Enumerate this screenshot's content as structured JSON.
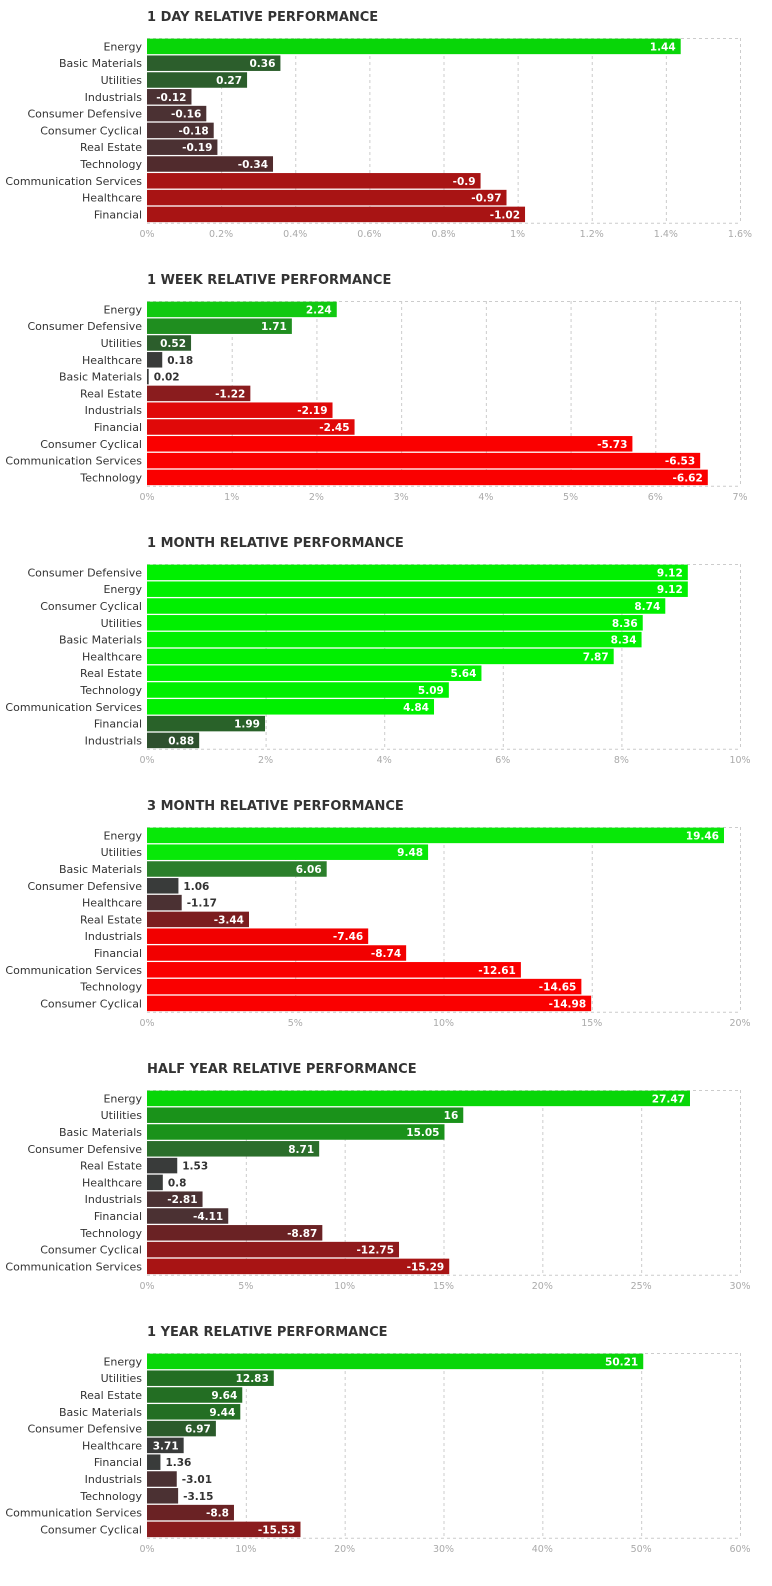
{
  "chart_data": [
    {
      "type": "bar",
      "orientation": "horizontal",
      "title": "1 DAY RELATIVE PERFORMANCE",
      "categories": [
        "Energy",
        "Basic Materials",
        "Utilities",
        "Industrials",
        "Consumer Defensive",
        "Consumer Cyclical",
        "Real Estate",
        "Technology",
        "Communication Services",
        "Healthcare",
        "Financial"
      ],
      "values": [
        1.44,
        0.36,
        0.27,
        -0.12,
        -0.16,
        -0.18,
        -0.19,
        -0.34,
        -0.9,
        -0.97,
        -1.02
      ],
      "value_labels": [
        "1.44",
        "0.36",
        "0.27",
        "-0.12",
        "-0.16",
        "-0.18",
        "-0.19",
        "-0.34",
        "-0.9",
        "-0.97",
        "-1.02"
      ],
      "xlim": [
        0,
        1.6
      ],
      "ticks": [
        "0%",
        "0.2%",
        "0.4%",
        "0.6%",
        "0.8%",
        "1%",
        "1.2%",
        "1.4%",
        "1.6%"
      ],
      "bar_colors": [
        "#08d608",
        "#2c5e2c",
        "#2c5e2c",
        "#4b3133",
        "#4b3133",
        "#4b3133",
        "#4b3133",
        "#512b2d",
        "#a81414",
        "#a81414",
        "#a81414"
      ],
      "grid": true
    },
    {
      "type": "bar",
      "orientation": "horizontal",
      "title": "1 WEEK RELATIVE PERFORMANCE",
      "categories": [
        "Energy",
        "Consumer Defensive",
        "Utilities",
        "Healthcare",
        "Basic Materials",
        "Real Estate",
        "Industrials",
        "Financial",
        "Consumer Cyclical",
        "Communication Services",
        "Technology"
      ],
      "values": [
        2.24,
        1.71,
        0.52,
        0.18,
        0.02,
        -1.22,
        -2.19,
        -2.45,
        -5.73,
        -6.53,
        -6.62
      ],
      "value_labels": [
        "2.24",
        "1.71",
        "0.52",
        "0.18",
        "0.02",
        "-1.22",
        "-2.19",
        "-2.45",
        "-5.73",
        "-6.53",
        "-6.62"
      ],
      "xlim": [
        0,
        7
      ],
      "ticks": [
        "0%",
        "1%",
        "2%",
        "3%",
        "4%",
        "5%",
        "6%",
        "7%"
      ],
      "bar_colors": [
        "#11c911",
        "#1f8e1f",
        "#2c5e2c",
        "#393b3a",
        "#393b3a",
        "#8a1c1e",
        "#e00909",
        "#e00909",
        "#fa0000",
        "#fa0000",
        "#fa0000"
      ],
      "grid": true
    },
    {
      "type": "bar",
      "orientation": "horizontal",
      "title": "1 MONTH RELATIVE PERFORMANCE",
      "categories": [
        "Consumer Defensive",
        "Energy",
        "Consumer Cyclical",
        "Utilities",
        "Basic Materials",
        "Healthcare",
        "Real Estate",
        "Technology",
        "Communication Services",
        "Financial",
        "Industrials"
      ],
      "values": [
        9.12,
        9.12,
        8.74,
        8.36,
        8.34,
        7.87,
        5.64,
        5.09,
        4.84,
        1.99,
        0.88
      ],
      "value_labels": [
        "9.12",
        "9.12",
        "8.74",
        "8.36",
        "8.34",
        "7.87",
        "5.64",
        "5.09",
        "4.84",
        "1.99",
        "0.88"
      ],
      "xlim": [
        0,
        10
      ],
      "ticks": [
        "0%",
        "2%",
        "4%",
        "6%",
        "8%",
        "10%"
      ],
      "bar_colors": [
        "#00f000",
        "#00f000",
        "#00f000",
        "#00f000",
        "#00f000",
        "#00f000",
        "#00f000",
        "#00f000",
        "#00f000",
        "#296229",
        "#2e502e"
      ],
      "grid": true
    },
    {
      "type": "bar",
      "orientation": "horizontal",
      "title": "3 MONTH RELATIVE PERFORMANCE",
      "categories": [
        "Energy",
        "Utilities",
        "Basic Materials",
        "Consumer Defensive",
        "Healthcare",
        "Real Estate",
        "Industrials",
        "Financial",
        "Communication Services",
        "Technology",
        "Consumer Cyclical"
      ],
      "values": [
        19.46,
        9.48,
        6.06,
        1.06,
        -1.17,
        -3.44,
        -7.46,
        -8.74,
        -12.61,
        -14.65,
        -14.98
      ],
      "value_labels": [
        "19.46",
        "9.48",
        "6.06",
        "1.06",
        "-1.17",
        "-3.44",
        "-7.46",
        "-8.74",
        "-12.61",
        "-14.65",
        "-14.98"
      ],
      "xlim": [
        0,
        20
      ],
      "ticks": [
        "0%",
        "5%",
        "10%",
        "15%",
        "20%"
      ],
      "bar_colors": [
        "#08e808",
        "#08e808",
        "#2b7f2b",
        "#393b3a",
        "#4b3133",
        "#7c1d1f",
        "#f20000",
        "#f20000",
        "#fa0000",
        "#fa0000",
        "#fa0000"
      ],
      "grid": true
    },
    {
      "type": "bar",
      "orientation": "horizontal",
      "title": "HALF YEAR RELATIVE PERFORMANCE",
      "categories": [
        "Energy",
        "Utilities",
        "Basic Materials",
        "Consumer Defensive",
        "Real Estate",
        "Healthcare",
        "Industrials",
        "Financial",
        "Technology",
        "Consumer Cyclical",
        "Communication Services"
      ],
      "values": [
        27.47,
        16,
        15.05,
        8.71,
        1.53,
        0.8,
        -2.81,
        -4.11,
        -8.87,
        -12.75,
        -15.29
      ],
      "value_labels": [
        "27.47",
        "16",
        "15.05",
        "8.71",
        "1.53",
        "0.8",
        "-2.81",
        "-4.11",
        "-8.87",
        "-12.75",
        "-15.29"
      ],
      "xlim": [
        0,
        30
      ],
      "ticks": [
        "0%",
        "5%",
        "10%",
        "15%",
        "20%",
        "25%",
        "30%"
      ],
      "bar_colors": [
        "#08d608",
        "#1a921a",
        "#1a921a",
        "#2b6e2b",
        "#393b3a",
        "#393b3a",
        "#4b3133",
        "#4b3133",
        "#6a2224",
        "#8f1a1c",
        "#a81414"
      ],
      "grid": true
    },
    {
      "type": "bar",
      "orientation": "horizontal",
      "title": "1 YEAR RELATIVE PERFORMANCE",
      "categories": [
        "Energy",
        "Utilities",
        "Real Estate",
        "Basic Materials",
        "Consumer Defensive",
        "Healthcare",
        "Financial",
        "Industrials",
        "Technology",
        "Communication Services",
        "Consumer Cyclical"
      ],
      "values": [
        50.21,
        12.83,
        9.64,
        9.44,
        6.97,
        3.71,
        1.36,
        -3.01,
        -3.15,
        -8.8,
        -15.53
      ],
      "value_labels": [
        "50.21",
        "12.83",
        "9.64",
        "9.44",
        "6.97",
        "3.71",
        "1.36",
        "-3.01",
        "-3.15",
        "-8.8",
        "-15.53"
      ],
      "xlim": [
        0,
        60
      ],
      "ticks": [
        "0%",
        "10%",
        "20%",
        "30%",
        "40%",
        "50%",
        "60%"
      ],
      "bar_colors": [
        "#08d608",
        "#236e23",
        "#236e23",
        "#236e23",
        "#2b5b2b",
        "#393b3a",
        "#393b3a",
        "#4b3133",
        "#4b3133",
        "#6a2224",
        "#8a1c1e"
      ],
      "grid": true
    }
  ]
}
